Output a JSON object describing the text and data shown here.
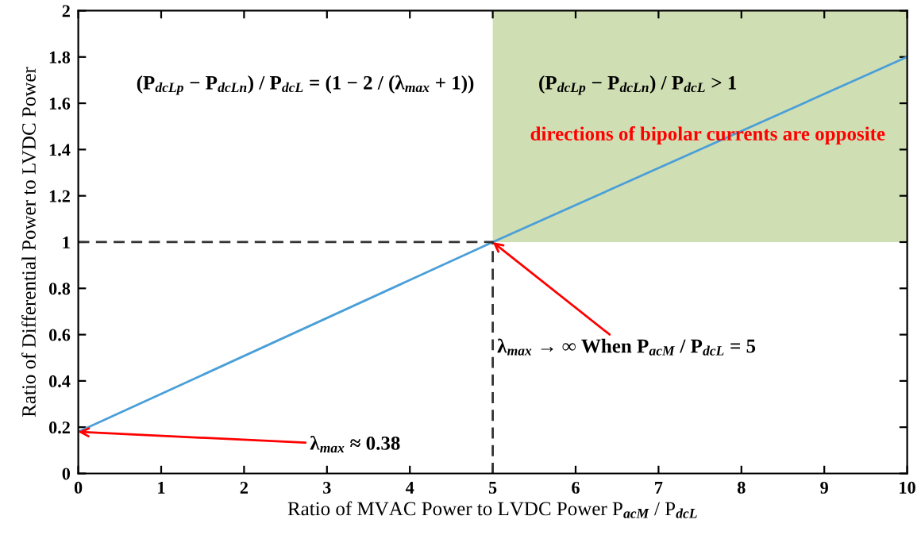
{
  "chart_data": {
    "type": "line",
    "xlabel": "Ratio of MVAC Power to LVDC Power P$_{acM}$ / P$_{dcL}$",
    "ylabel": "Ratio of Differential Power to LVDC Power",
    "series": [
      {
        "color": "#4a9fd8",
        "x": [
          0,
          5,
          10
        ],
        "values": [
          0.18,
          1,
          1.8
        ]
      },
      {
        "color": "#333333",
        "x": [
          0,
          5,
          5
        ],
        "values": [
          1,
          1,
          0
        ],
        "line_style": "dashed"
      }
    ],
    "xlim": [
      0,
      10
    ],
    "ylim": [
      0,
      2
    ],
    "xticks": [
      0,
      1,
      2,
      3,
      4,
      5,
      6,
      7,
      8,
      9,
      10
    ],
    "yticks": [
      0,
      0.2,
      0.4,
      0.6,
      0.8,
      1,
      1.2,
      1.4,
      1.6,
      1.8,
      2
    ],
    "bands": [
      {
        "axis": "x",
        "from": 5,
        "to": 10,
        "color": "#d0deb3"
      }
    ],
    "annotations": [
      "(P$_{dcLp}$ − P$_{dcLn}$) / P$_{dcL}$ = (1 − 2 / (λ$_{max}$ + 1))",
      "(P$_{dcLp}$ − P$_{dcLn}$) / P$_{dcL}$ > 1",
      "directions of bipolar currents are opposite",
      {
        "text": "λ$_{max}$ ≈ 0.38",
        "x": 0,
        "y": 0.18
      },
      {
        "text": "λ$_{max}$ → ∞ When P$_{acM}$ / P$_{dcL}$ = 5",
        "x": 5,
        "y": 1
      }
    ],
    "grid": false,
    "legend": false,
    "marker": "none",
    "line_style": "solid"
  }
}
